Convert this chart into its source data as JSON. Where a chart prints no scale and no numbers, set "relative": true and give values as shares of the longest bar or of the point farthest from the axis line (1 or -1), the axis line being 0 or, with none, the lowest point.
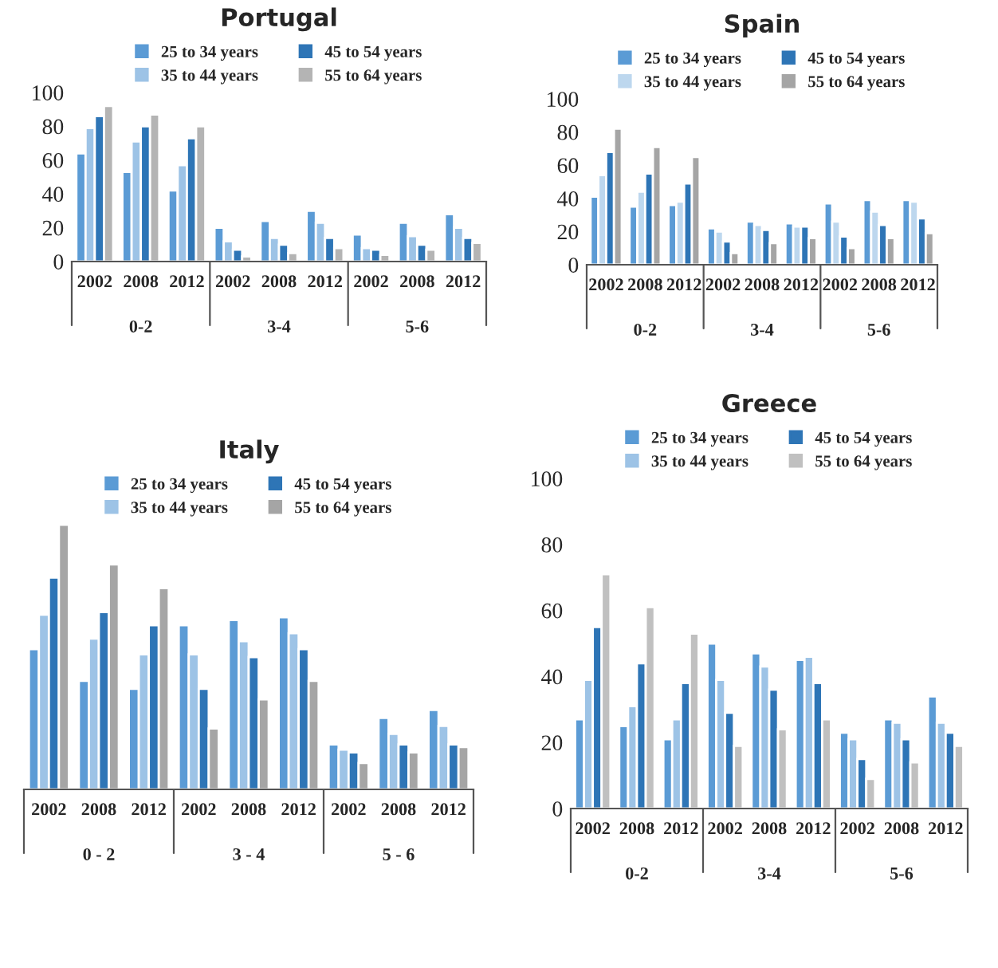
{
  "chart_data": [
    {
      "type": "bar",
      "title": "Portugal",
      "categories": [
        "2002",
        "2008",
        "2012",
        "2002",
        "2008",
        "2012",
        "2002",
        "2008",
        "2012"
      ],
      "annotations": [
        "0-2",
        "3-4",
        "5-6"
      ],
      "ylim": [
        0,
        100
      ],
      "yticks": [
        0,
        20,
        40,
        60,
        80,
        100
      ],
      "legend": "top",
      "series": [
        {
          "name": "25 to 34 years",
          "color": "#5b9bd5",
          "values": [
            64,
            53,
            42,
            20,
            24,
            30,
            16,
            23,
            28
          ]
        },
        {
          "name": "35 to 44 years",
          "color": "#9dc3e6",
          "values": [
            79,
            71,
            57,
            12,
            14,
            23,
            8,
            15,
            20
          ]
        },
        {
          "name": "45 to 54 years",
          "color": "#2e75b6",
          "values": [
            86,
            80,
            73,
            7,
            10,
            14,
            7,
            10,
            14
          ]
        },
        {
          "name": "55 to 64 years",
          "color": "#b4b4b4",
          "values": [
            92,
            87,
            80,
            3,
            5,
            8,
            4,
            7,
            11
          ]
        }
      ]
    },
    {
      "type": "bar",
      "title": "Spain",
      "categories": [
        "2002",
        "2008",
        "2012",
        "2002",
        "2008",
        "2012",
        "2002",
        "2008",
        "2012"
      ],
      "annotations": [
        "0-2",
        "3-4",
        "5-6"
      ],
      "ylim": [
        0,
        100
      ],
      "yticks": [
        0,
        20,
        40,
        60,
        80,
        100
      ],
      "legend": "top",
      "series": [
        {
          "name": "25 to 34 years",
          "color": "#5b9bd5",
          "values": [
            41,
            35,
            36,
            22,
            26,
            25,
            37,
            39,
            39
          ]
        },
        {
          "name": "35 to 44 years",
          "color": "#bdd7ee",
          "values": [
            54,
            44,
            38,
            20,
            24,
            23,
            26,
            32,
            38
          ]
        },
        {
          "name": "45 to 54 years",
          "color": "#2e75b6",
          "values": [
            68,
            55,
            49,
            14,
            21,
            23,
            17,
            24,
            28
          ]
        },
        {
          "name": "55 to 64 years",
          "color": "#a5a5a5",
          "values": [
            82,
            71,
            65,
            7,
            13,
            16,
            10,
            16,
            19
          ]
        }
      ]
    },
    {
      "type": "bar",
      "title": "Italy",
      "relative": true,
      "tick_labels": "x",
      "categories": [
        "2002",
        "2008",
        "2012",
        "2002",
        "2008",
        "2012",
        "2002",
        "2008",
        "2012"
      ],
      "annotations": [
        "0 - 2",
        "3 - 4",
        "5 - 6"
      ],
      "legend": "top",
      "series": [
        {
          "name": "25 to 34 years",
          "color": "#5b9bd5",
          "values": [
            0.53,
            0.41,
            0.38,
            0.62,
            0.64,
            0.65,
            0.17,
            0.27,
            0.3
          ]
        },
        {
          "name": "35 to 44 years",
          "color": "#9dc3e6",
          "values": [
            0.66,
            0.57,
            0.51,
            0.51,
            0.56,
            0.59,
            0.15,
            0.21,
            0.24
          ]
        },
        {
          "name": "45 to 54 years",
          "color": "#2e75b6",
          "values": [
            0.8,
            0.67,
            0.62,
            0.38,
            0.5,
            0.53,
            0.14,
            0.17,
            0.17
          ]
        },
        {
          "name": "55 to 64 years",
          "color": "#a5a5a5",
          "values": [
            1.0,
            0.85,
            0.76,
            0.23,
            0.34,
            0.41,
            0.1,
            0.14,
            0.16
          ]
        }
      ]
    },
    {
      "type": "bar",
      "title": "Greece",
      "categories": [
        "2002",
        "2008",
        "2012",
        "2002",
        "2008",
        "2012",
        "2002",
        "2008",
        "2012"
      ],
      "annotations": [
        "0-2",
        "3-4",
        "5-6"
      ],
      "ylim": [
        0,
        100
      ],
      "yticks": [
        0,
        20,
        40,
        60,
        80,
        100
      ],
      "legend": "top",
      "series": [
        {
          "name": "25 to 34 years",
          "color": "#5b9bd5",
          "values": [
            27,
            25,
            21,
            50,
            47,
            45,
            23,
            27,
            34
          ]
        },
        {
          "name": "35 to 44 years",
          "color": "#9dc3e6",
          "values": [
            39,
            31,
            27,
            39,
            43,
            46,
            21,
            26,
            26
          ]
        },
        {
          "name": "45 to 54 years",
          "color": "#2e75b6",
          "values": [
            55,
            44,
            38,
            29,
            36,
            38,
            15,
            21,
            23
          ]
        },
        {
          "name": "55 to 64 years",
          "color": "#c0c0c0",
          "values": [
            71,
            61,
            53,
            19,
            24,
            27,
            9,
            14,
            19
          ]
        }
      ]
    }
  ]
}
